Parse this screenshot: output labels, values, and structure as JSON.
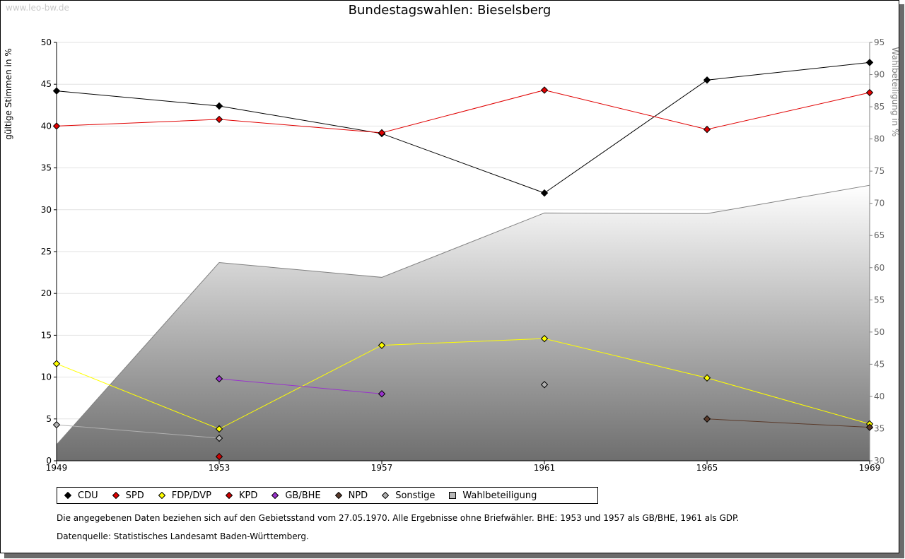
{
  "watermark": "www.leo-bw.de",
  "chart_data": {
    "type": "line",
    "title": "Bundestagswahlen: Bieselsberg",
    "ylabel": "gültige Stimmen in %",
    "y2label": "Wahlbeteiligung in %",
    "xlabel": "",
    "x": [
      1949,
      1953,
      1957,
      1961,
      1965,
      1969
    ],
    "ylim": [
      0,
      50
    ],
    "y2lim": [
      30,
      95
    ],
    "yticks": [
      0,
      5,
      10,
      15,
      20,
      25,
      30,
      35,
      40,
      45,
      50
    ],
    "y2ticks": [
      30,
      35,
      40,
      45,
      50,
      55,
      60,
      65,
      70,
      75,
      80,
      85,
      90,
      95
    ],
    "grid": true,
    "series": [
      {
        "name": "CDU",
        "color": "#000000",
        "values": [
          44.2,
          42.4,
          39.1,
          32.0,
          45.5,
          47.6
        ]
      },
      {
        "name": "SPD",
        "color": "#e00000",
        "values": [
          40.0,
          40.8,
          39.2,
          44.3,
          39.6,
          44.0
        ]
      },
      {
        "name": "FDP/DVP",
        "color": "#ffff00",
        "values": [
          11.6,
          3.8,
          13.8,
          14.6,
          9.9,
          4.4
        ]
      },
      {
        "name": "KPD",
        "color": "#cc0000",
        "values": [
          null,
          0.5,
          null,
          null,
          null,
          null
        ]
      },
      {
        "name": "GB/BHE",
        "color": "#9933cc",
        "values": [
          null,
          9.8,
          8.0,
          null,
          null,
          null
        ]
      },
      {
        "name": "NPD",
        "color": "#5a3a2a",
        "values": [
          null,
          null,
          null,
          null,
          5.0,
          4.0
        ]
      },
      {
        "name": "Sonstige",
        "color": "#b0b0b0",
        "values": [
          4.3,
          2.7,
          null,
          9.1,
          null,
          null
        ]
      }
    ],
    "turnout": {
      "name": "Wahlbeteiligung",
      "color": "#808080",
      "axis": "right",
      "values": [
        32.5,
        60.8,
        58.5,
        68.5,
        68.4,
        72.8
      ]
    }
  },
  "legend": [
    {
      "label": "CDU",
      "color": "#000000",
      "shape": "diamond"
    },
    {
      "label": "SPD",
      "color": "#e00000",
      "shape": "diamond"
    },
    {
      "label": "FDP/DVP",
      "color": "#ffff00",
      "shape": "diamond"
    },
    {
      "label": "KPD",
      "color": "#cc0000",
      "shape": "diamond"
    },
    {
      "label": "GB/BHE",
      "color": "#9933cc",
      "shape": "diamond"
    },
    {
      "label": "NPD",
      "color": "#5a3a2a",
      "shape": "diamond"
    },
    {
      "label": "Sonstige",
      "color": "#b0b0b0",
      "shape": "diamond"
    },
    {
      "label": "Wahlbeteiligung",
      "color": "#b8b8b8",
      "shape": "square"
    }
  ],
  "notes": {
    "line1": "Die angegebenen Daten beziehen sich auf den Gebietsstand vom 27.05.1970. Alle Ergebnisse ohne Briefwähler. BHE: 1953 und 1957 als GB/BHE, 1961 als GDP.",
    "line2": "Datenquelle: Statistisches Landesamt Baden-Württemberg."
  }
}
